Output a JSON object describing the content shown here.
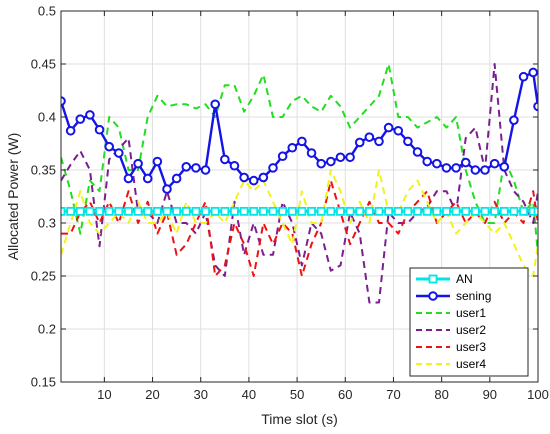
{
  "chart_data": {
    "type": "line",
    "xlabel": "Time slot (s)",
    "ylabel": "Allocated Power (W)",
    "xlim": [
      1,
      100
    ],
    "ylim": [
      0.15,
      0.5
    ],
    "xticks": [
      10,
      20,
      30,
      40,
      50,
      60,
      70,
      80,
      90,
      100
    ],
    "yticks": [
      0.15,
      0.2,
      0.25,
      0.3,
      0.35,
      0.4,
      0.45,
      0.5
    ],
    "ytick_labels": [
      "0.15",
      "0.2",
      "0.25",
      "0.3",
      "0.35",
      "0.4",
      "0.45",
      "0.5"
    ],
    "grid": true,
    "legend_position": "bottom-right",
    "series": [
      {
        "name": "AN",
        "color": "#00e5e5",
        "style": "solid-square-markers",
        "x": [
          1,
          3,
          5,
          7,
          9,
          11,
          13,
          15,
          17,
          19,
          21,
          23,
          25,
          27,
          29,
          31,
          33,
          35,
          37,
          39,
          41,
          43,
          45,
          47,
          49,
          51,
          53,
          55,
          57,
          59,
          61,
          63,
          65,
          67,
          69,
          71,
          73,
          75,
          77,
          79,
          81,
          83,
          85,
          87,
          89,
          91,
          93,
          95,
          97,
          99,
          100
        ],
        "y": [
          0.311,
          0.311,
          0.311,
          0.311,
          0.311,
          0.311,
          0.311,
          0.311,
          0.311,
          0.311,
          0.311,
          0.311,
          0.311,
          0.311,
          0.311,
          0.311,
          0.311,
          0.311,
          0.311,
          0.311,
          0.311,
          0.311,
          0.311,
          0.311,
          0.311,
          0.311,
          0.311,
          0.311,
          0.311,
          0.311,
          0.311,
          0.311,
          0.311,
          0.311,
          0.311,
          0.311,
          0.311,
          0.311,
          0.311,
          0.311,
          0.311,
          0.311,
          0.311,
          0.311,
          0.311,
          0.311,
          0.311,
          0.311,
          0.311,
          0.311,
          0.311
        ]
      },
      {
        "name": "sening",
        "color": "#1414e6",
        "style": "solid-circle-markers",
        "x": [
          1,
          3,
          5,
          7,
          9,
          11,
          13,
          15,
          17,
          19,
          21,
          23,
          25,
          27,
          29,
          31,
          33,
          35,
          37,
          39,
          41,
          43,
          45,
          47,
          49,
          51,
          53,
          55,
          57,
          59,
          61,
          63,
          65,
          67,
          69,
          71,
          73,
          75,
          77,
          79,
          81,
          83,
          85,
          87,
          89,
          91,
          93,
          95,
          97,
          99,
          100
        ],
        "y": [
          0.415,
          0.387,
          0.398,
          0.402,
          0.388,
          0.372,
          0.366,
          0.342,
          0.356,
          0.342,
          0.358,
          0.332,
          0.342,
          0.353,
          0.352,
          0.35,
          0.412,
          0.36,
          0.354,
          0.343,
          0.34,
          0.343,
          0.352,
          0.363,
          0.371,
          0.377,
          0.366,
          0.356,
          0.358,
          0.362,
          0.362,
          0.376,
          0.381,
          0.377,
          0.39,
          0.387,
          0.377,
          0.367,
          0.358,
          0.356,
          0.352,
          0.352,
          0.357,
          0.35,
          0.35,
          0.356,
          0.353,
          0.397,
          0.438,
          0.442,
          0.41
        ]
      },
      {
        "name": "user1",
        "color": "#22dd22",
        "style": "dashed",
        "x": [
          1,
          3,
          5,
          7,
          9,
          11,
          13,
          15,
          17,
          19,
          21,
          23,
          25,
          27,
          29,
          31,
          33,
          35,
          37,
          39,
          41,
          43,
          45,
          47,
          49,
          51,
          53,
          55,
          57,
          59,
          61,
          63,
          65,
          67,
          69,
          71,
          73,
          75,
          77,
          79,
          81,
          83,
          85,
          87,
          89,
          91,
          93,
          95,
          97,
          99,
          100
        ],
        "y": [
          0.362,
          0.33,
          0.29,
          0.34,
          0.33,
          0.4,
          0.39,
          0.35,
          0.35,
          0.4,
          0.42,
          0.41,
          0.412,
          0.412,
          0.408,
          0.412,
          0.4,
          0.43,
          0.43,
          0.405,
          0.42,
          0.44,
          0.4,
          0.4,
          0.415,
          0.42,
          0.41,
          0.405,
          0.42,
          0.41,
          0.39,
          0.4,
          0.41,
          0.42,
          0.45,
          0.4,
          0.4,
          0.39,
          0.395,
          0.4,
          0.39,
          0.4,
          0.35,
          0.32,
          0.3,
          0.3,
          0.36,
          0.34,
          0.31,
          0.32,
          0.27
        ]
      },
      {
        "name": "user2",
        "color": "#7a1f8f",
        "style": "dashed",
        "x": [
          1,
          3,
          5,
          7,
          9,
          11,
          13,
          15,
          17,
          19,
          21,
          23,
          25,
          27,
          29,
          31,
          33,
          35,
          37,
          39,
          41,
          43,
          45,
          47,
          49,
          51,
          53,
          55,
          57,
          59,
          61,
          63,
          65,
          67,
          69,
          71,
          73,
          75,
          77,
          79,
          81,
          83,
          85,
          87,
          89,
          91,
          93,
          95,
          97,
          99,
          100
        ],
        "y": [
          0.34,
          0.355,
          0.368,
          0.35,
          0.278,
          0.36,
          0.37,
          0.38,
          0.31,
          0.31,
          0.3,
          0.33,
          0.3,
          0.3,
          0.29,
          0.31,
          0.26,
          0.25,
          0.32,
          0.27,
          0.3,
          0.27,
          0.27,
          0.32,
          0.3,
          0.26,
          0.3,
          0.29,
          0.255,
          0.26,
          0.31,
          0.29,
          0.225,
          0.225,
          0.31,
          0.3,
          0.3,
          0.31,
          0.315,
          0.33,
          0.33,
          0.31,
          0.38,
          0.39,
          0.35,
          0.45,
          0.35,
          0.33,
          0.32,
          0.3,
          0.33
        ]
      },
      {
        "name": "user3",
        "color": "#ee1111",
        "style": "dashed",
        "x": [
          1,
          3,
          5,
          7,
          9,
          11,
          13,
          15,
          17,
          19,
          21,
          23,
          25,
          27,
          29,
          31,
          33,
          35,
          37,
          39,
          41,
          43,
          45,
          47,
          49,
          51,
          53,
          55,
          57,
          59,
          61,
          63,
          65,
          67,
          69,
          71,
          73,
          75,
          77,
          79,
          81,
          83,
          85,
          87,
          89,
          91,
          93,
          95,
          97,
          99,
          100
        ],
        "y": [
          0.29,
          0.29,
          0.31,
          0.32,
          0.3,
          0.32,
          0.3,
          0.33,
          0.3,
          0.32,
          0.29,
          0.31,
          0.27,
          0.28,
          0.3,
          0.32,
          0.25,
          0.26,
          0.3,
          0.28,
          0.25,
          0.3,
          0.28,
          0.3,
          0.29,
          0.25,
          0.28,
          0.3,
          0.34,
          0.31,
          0.28,
          0.3,
          0.32,
          0.3,
          0.3,
          0.29,
          0.31,
          0.32,
          0.33,
          0.3,
          0.31,
          0.32,
          0.3,
          0.31,
          0.3,
          0.32,
          0.3,
          0.31,
          0.3,
          0.33,
          0.3
        ]
      },
      {
        "name": "user4",
        "color": "#f2f21a",
        "style": "dashed",
        "x": [
          1,
          3,
          5,
          7,
          9,
          11,
          13,
          15,
          17,
          19,
          21,
          23,
          25,
          27,
          29,
          31,
          33,
          35,
          37,
          39,
          41,
          43,
          45,
          47,
          49,
          51,
          53,
          55,
          57,
          59,
          61,
          63,
          65,
          67,
          69,
          71,
          73,
          75,
          77,
          79,
          81,
          83,
          85,
          87,
          89,
          91,
          93,
          95,
          97,
          99,
          100
        ],
        "y": [
          0.27,
          0.3,
          0.33,
          0.3,
          0.29,
          0.3,
          0.31,
          0.3,
          0.32,
          0.3,
          0.3,
          0.31,
          0.29,
          0.32,
          0.3,
          0.3,
          0.31,
          0.3,
          0.32,
          0.34,
          0.33,
          0.34,
          0.32,
          0.3,
          0.28,
          0.33,
          0.3,
          0.3,
          0.35,
          0.33,
          0.3,
          0.32,
          0.3,
          0.35,
          0.31,
          0.31,
          0.33,
          0.34,
          0.32,
          0.3,
          0.31,
          0.29,
          0.3,
          0.31,
          0.3,
          0.29,
          0.3,
          0.28,
          0.26,
          0.25,
          0.28
        ]
      }
    ]
  }
}
